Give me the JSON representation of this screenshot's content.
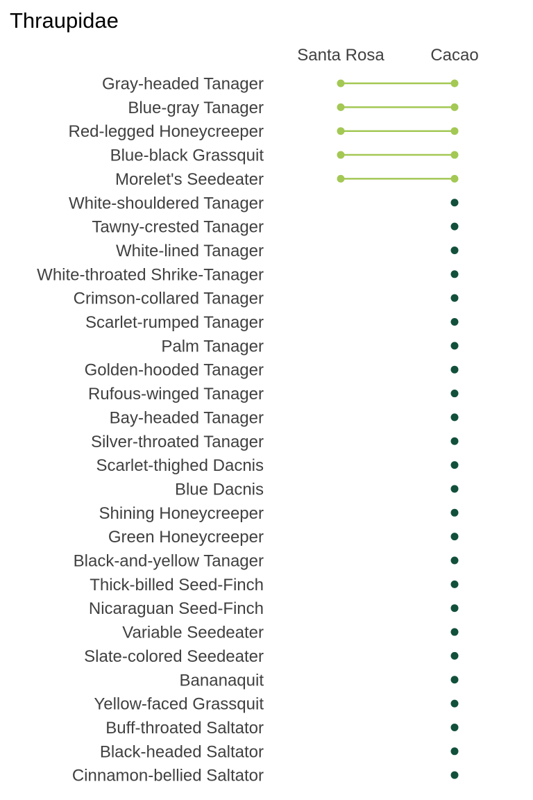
{
  "chart_data": {
    "type": "scatter",
    "title": "Thraupidae",
    "columns": [
      "Santa Rosa",
      "Cacao"
    ],
    "colors": {
      "shared": "#a3c854",
      "cacao_only": "#12503c",
      "label_text": "#404040",
      "title_text": "#000000"
    },
    "grid": false,
    "legend": "none",
    "species": [
      {
        "name": "Gray-headed Tanager",
        "sites": [
          "Santa Rosa",
          "Cacao"
        ]
      },
      {
        "name": "Blue-gray Tanager",
        "sites": [
          "Santa Rosa",
          "Cacao"
        ]
      },
      {
        "name": "Red-legged Honeycreeper",
        "sites": [
          "Santa Rosa",
          "Cacao"
        ]
      },
      {
        "name": "Blue-black Grassquit",
        "sites": [
          "Santa Rosa",
          "Cacao"
        ]
      },
      {
        "name": "Morelet's Seedeater",
        "sites": [
          "Santa Rosa",
          "Cacao"
        ]
      },
      {
        "name": "White-shouldered Tanager",
        "sites": [
          "Cacao"
        ]
      },
      {
        "name": "Tawny-crested Tanager",
        "sites": [
          "Cacao"
        ]
      },
      {
        "name": "White-lined Tanager",
        "sites": [
          "Cacao"
        ]
      },
      {
        "name": "White-throated Shrike-Tanager",
        "sites": [
          "Cacao"
        ]
      },
      {
        "name": "Crimson-collared Tanager",
        "sites": [
          "Cacao"
        ]
      },
      {
        "name": "Scarlet-rumped Tanager",
        "sites": [
          "Cacao"
        ]
      },
      {
        "name": "Palm Tanager",
        "sites": [
          "Cacao"
        ]
      },
      {
        "name": "Golden-hooded Tanager",
        "sites": [
          "Cacao"
        ]
      },
      {
        "name": "Rufous-winged Tanager",
        "sites": [
          "Cacao"
        ]
      },
      {
        "name": "Bay-headed Tanager",
        "sites": [
          "Cacao"
        ]
      },
      {
        "name": "Silver-throated Tanager",
        "sites": [
          "Cacao"
        ]
      },
      {
        "name": "Scarlet-thighed Dacnis",
        "sites": [
          "Cacao"
        ]
      },
      {
        "name": "Blue Dacnis",
        "sites": [
          "Cacao"
        ]
      },
      {
        "name": "Shining Honeycreeper",
        "sites": [
          "Cacao"
        ]
      },
      {
        "name": "Green Honeycreeper",
        "sites": [
          "Cacao"
        ]
      },
      {
        "name": "Black-and-yellow Tanager",
        "sites": [
          "Cacao"
        ]
      },
      {
        "name": "Thick-billed Seed-Finch",
        "sites": [
          "Cacao"
        ]
      },
      {
        "name": "Nicaraguan Seed-Finch",
        "sites": [
          "Cacao"
        ]
      },
      {
        "name": "Variable Seedeater",
        "sites": [
          "Cacao"
        ]
      },
      {
        "name": "Slate-colored Seedeater",
        "sites": [
          "Cacao"
        ]
      },
      {
        "name": "Bananaquit",
        "sites": [
          "Cacao"
        ]
      },
      {
        "name": "Yellow-faced Grassquit",
        "sites": [
          "Cacao"
        ]
      },
      {
        "name": "Buff-throated Saltator",
        "sites": [
          "Cacao"
        ]
      },
      {
        "name": "Black-headed Saltator",
        "sites": [
          "Cacao"
        ]
      },
      {
        "name": "Cinnamon-bellied Saltator",
        "sites": [
          "Cacao"
        ]
      }
    ]
  }
}
